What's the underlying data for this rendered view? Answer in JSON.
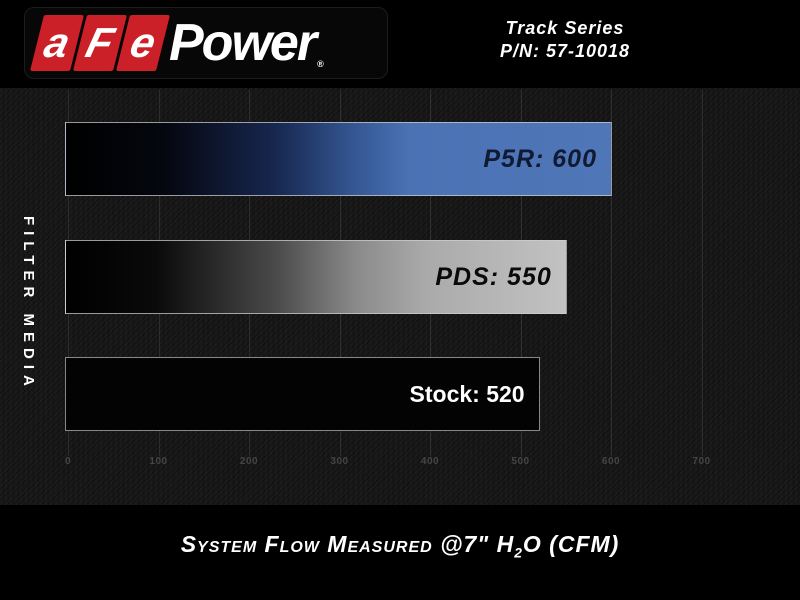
{
  "header": {
    "logo_afe_letters": [
      "a",
      "F",
      "e"
    ],
    "logo_power": "Power",
    "logo_registered": "®",
    "series_title": "Track Series",
    "part_number": "P/N: 57-10018"
  },
  "chart_data": {
    "type": "bar",
    "orientation": "horizontal",
    "title": "",
    "categories": [
      "P5R",
      "PDS",
      "Stock"
    ],
    "values": [
      600,
      550,
      520
    ],
    "series": [
      {
        "name": "P5R",
        "value": 600,
        "label": "P5R: 600",
        "bar_style": "black-to-blue-gradient",
        "label_color": "#101a33"
      },
      {
        "name": "PDS",
        "value": 550,
        "label": "PDS: 550",
        "bar_style": "black-to-silver-gradient",
        "label_color": "#0a0a0a"
      },
      {
        "name": "Stock",
        "value": 520,
        "label": "Stock: 520",
        "bar_style": "solid-black",
        "label_color": "#ffffff"
      }
    ],
    "xlabel": "System Flow Measured @7\" H2O (CFM)",
    "ylabel": "FILTER MEDIA",
    "x_ticks": [
      0,
      100,
      200,
      300,
      400,
      500,
      600,
      700
    ],
    "x_tick_labels": [
      "0",
      "100",
      "200",
      "300",
      "400",
      "500",
      "600",
      "700"
    ],
    "xlim": [
      0,
      780
    ],
    "grid": "vertical-gridlines",
    "legend": "none",
    "colors": {
      "accent_blue": "#4a72b4",
      "accent_red": "#cb2027",
      "background": "#161616",
      "bar_stock": "#030303"
    }
  },
  "footer": {
    "caption_pre": "System Flow Measured @7\" H",
    "caption_sub": "2",
    "caption_post": "O (CFM)"
  }
}
